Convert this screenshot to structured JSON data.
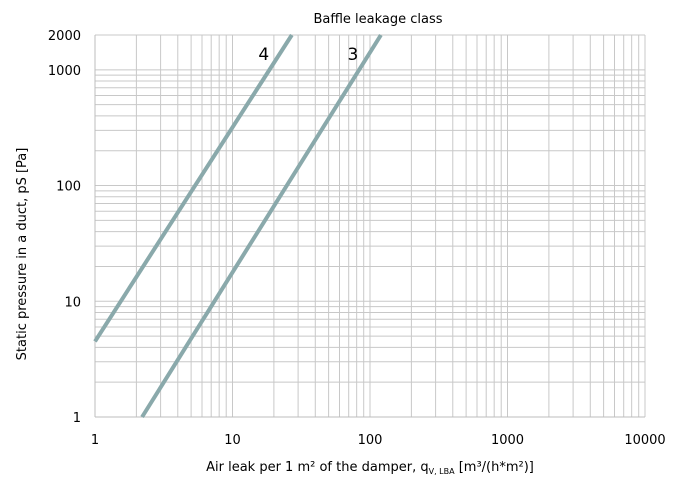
{
  "chart_data": {
    "type": "line",
    "title": "Baffle leakage class",
    "xlabel": {
      "main": "Air leak per 1 m² of the damper, q",
      "subscript": "V, LBA",
      "unit": " [m³/(h*m²)]"
    },
    "ylabel": "Static pressure in a duct, pS [Pa]",
    "x_scale": "log",
    "y_scale": "log",
    "xlim": [
      1,
      10000
    ],
    "ylim": [
      1,
      2000
    ],
    "x_ticks": [
      {
        "value": 1,
        "label": "1"
      },
      {
        "value": 10,
        "label": "10"
      },
      {
        "value": 100,
        "label": "100"
      },
      {
        "value": 1000,
        "label": "1000"
      },
      {
        "value": 10000,
        "label": "10000"
      }
    ],
    "y_ticks": [
      {
        "value": 1,
        "label": "1"
      },
      {
        "value": 10,
        "label": "10"
      },
      {
        "value": 100,
        "label": "100"
      },
      {
        "value": 1000,
        "label": "1000"
      },
      {
        "value": 2000,
        "label": "2000"
      }
    ],
    "grid": true,
    "series": [
      {
        "name": "4",
        "color": "#8aa9ab",
        "points": [
          {
            "x": 1,
            "y": 4.5
          },
          {
            "x": 27,
            "y": 2000
          }
        ]
      },
      {
        "name": "3",
        "color": "#8aa9ab",
        "points": [
          {
            "x": 2.2,
            "y": 1
          },
          {
            "x": 120,
            "y": 2000
          }
        ]
      }
    ]
  }
}
